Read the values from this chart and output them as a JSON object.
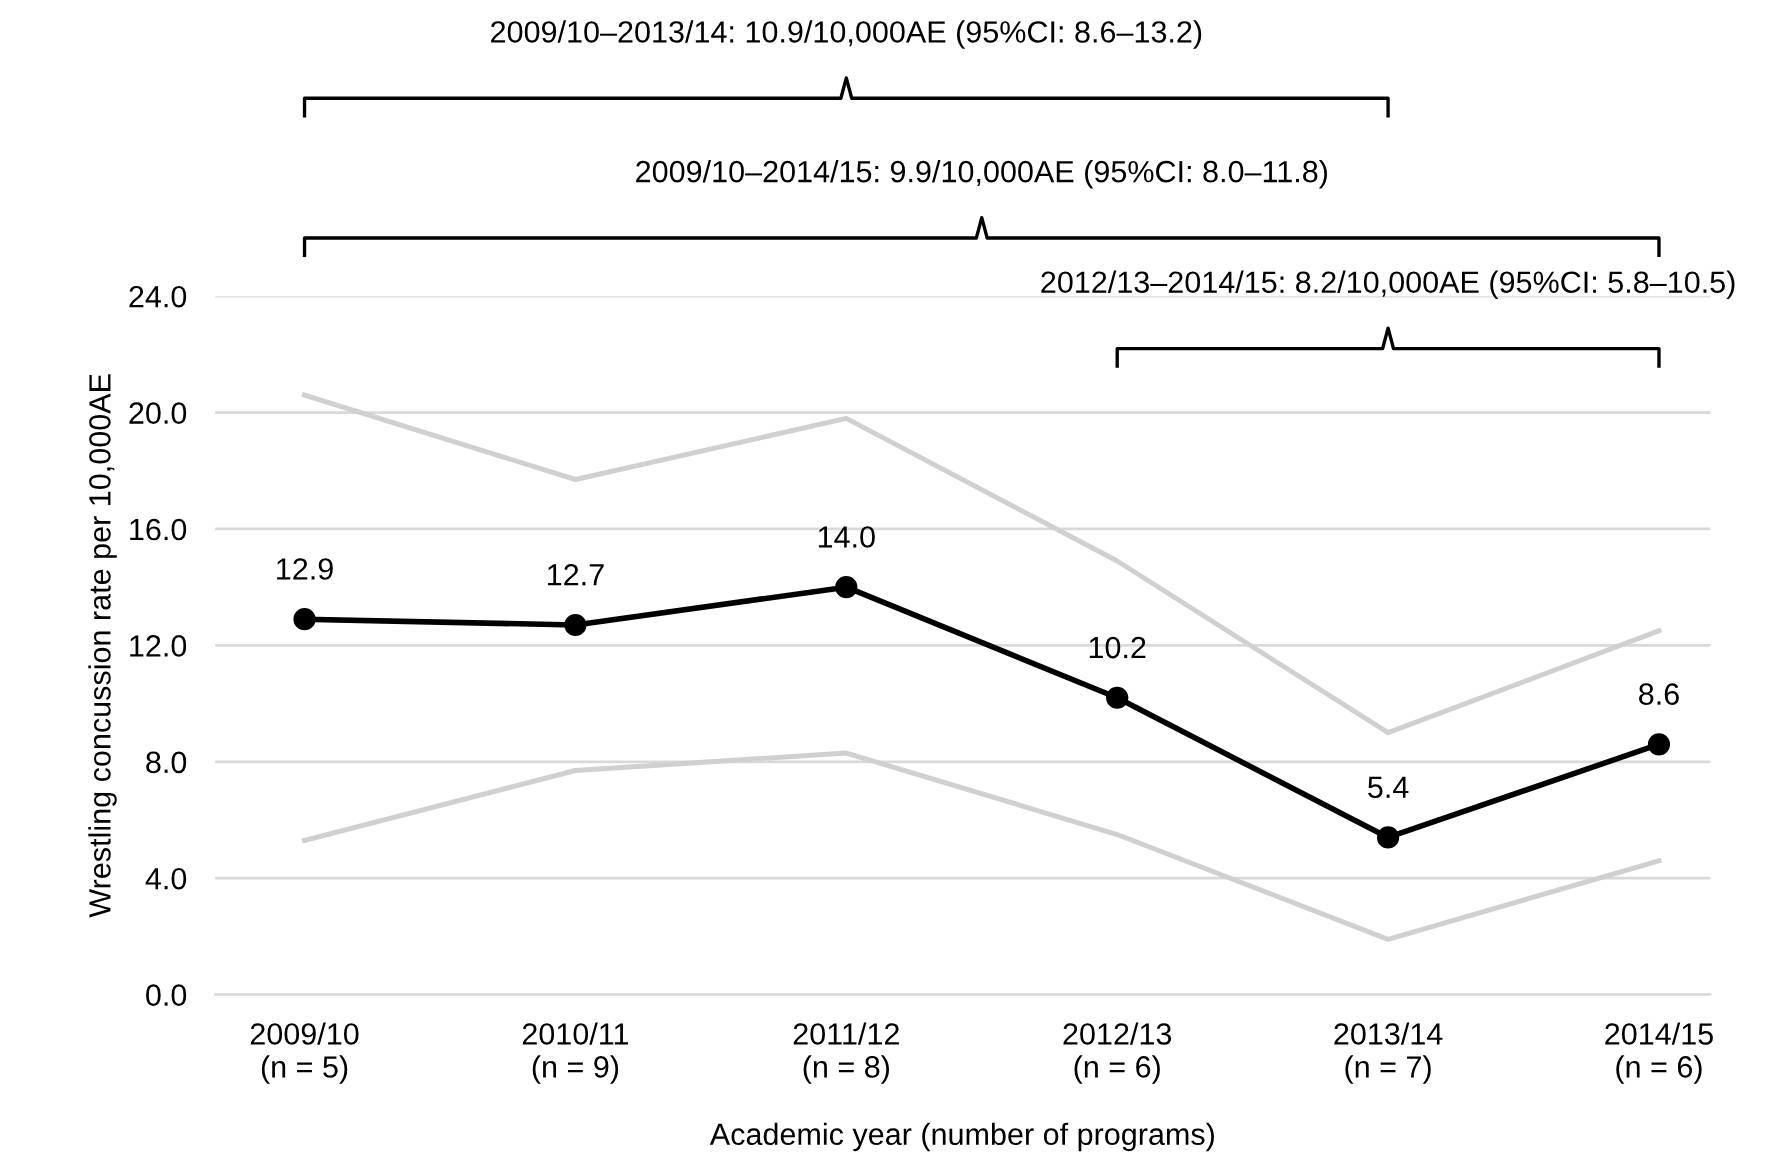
{
  "chart_data": {
    "type": "line",
    "categories": [
      "2009/10\n(n = 5)",
      "2010/11\n(n = 9)",
      "2011/12\n(n = 8)",
      "2012/13\n(n = 6)",
      "2013/14\n(n = 7)",
      "2014/15\n(n = 6)"
    ],
    "series": [
      {
        "color": "#d0d0d0",
        "marker": "none",
        "values": [
          20.6,
          17.7,
          19.8,
          14.9,
          9.0,
          12.5
        ]
      },
      {
        "color": "#d0d0d0",
        "marker": "none",
        "values": [
          5.3,
          7.7,
          8.3,
          5.5,
          1.9,
          4.6
        ]
      },
      {
        "color": "#000000",
        "marker": "circle",
        "values": [
          12.9,
          12.7,
          14.0,
          10.2,
          5.4,
          8.6
        ],
        "value_labels": [
          "12.9",
          "12.7",
          "14.0",
          "10.2",
          "5.4",
          "8.6"
        ]
      }
    ],
    "xlabel": "Academic year (number of programs)",
    "ylabel": "Wrestling concussion rate per 10,000AE",
    "ylim": [
      0,
      24
    ],
    "yticks": [
      {
        "value": 0,
        "label": "0.0"
      },
      {
        "value": 4,
        "label": "4.0"
      },
      {
        "value": 8,
        "label": "8.0"
      },
      {
        "value": 12,
        "label": "12.0"
      },
      {
        "value": 16,
        "label": "16.0"
      },
      {
        "value": 20,
        "label": "20.0"
      },
      {
        "value": 24,
        "label": "24.0"
      }
    ],
    "grid": "y",
    "legend": false,
    "annotations": [
      "2009/10–2013/14: 10.9/10,000AE (95%CI: 8.6–13.2)",
      "2009/10–2014/15: 9.9/10,000AE (95%CI: 8.0–11.8)",
      "2012/13–2014/15: 8.2/10,000AE (95%CI: 5.8–10.5)"
    ]
  }
}
